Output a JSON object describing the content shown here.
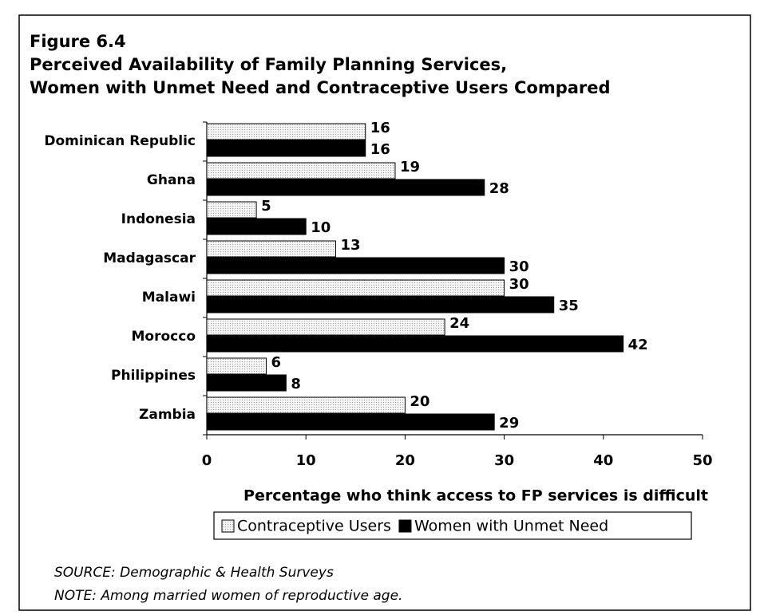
{
  "chart_data": {
    "type": "bar",
    "orientation": "horizontal",
    "figure_label": "Figure 6.4",
    "title": [
      "Perceived Availability of Family Planning Services,",
      "Women with Unmet Need and Contraceptive Users Compared"
    ],
    "categories": [
      "Dominican Republic",
      "Ghana",
      "Indonesia",
      "Madagascar",
      "Malawi",
      "Morocco",
      "Philippines",
      "Zambia"
    ],
    "series": [
      {
        "name": "Contraceptive Users",
        "color": "#e4e4e4",
        "values": [
          16,
          19,
          5,
          13,
          30,
          24,
          6,
          20
        ]
      },
      {
        "name": "Women with Unmet Need",
        "color": "#000000",
        "values": [
          16,
          28,
          10,
          30,
          35,
          42,
          8,
          29
        ]
      }
    ],
    "xlabel": "Percentage who think access to FP services is difficult",
    "xlim": [
      0,
      50
    ],
    "xticks": [
      0,
      10,
      20,
      30,
      40,
      50
    ],
    "legend": "bottom",
    "source": "SOURCE:  Demographic & Health Surveys",
    "note": "NOTE:  Among married women of reproductive age."
  }
}
